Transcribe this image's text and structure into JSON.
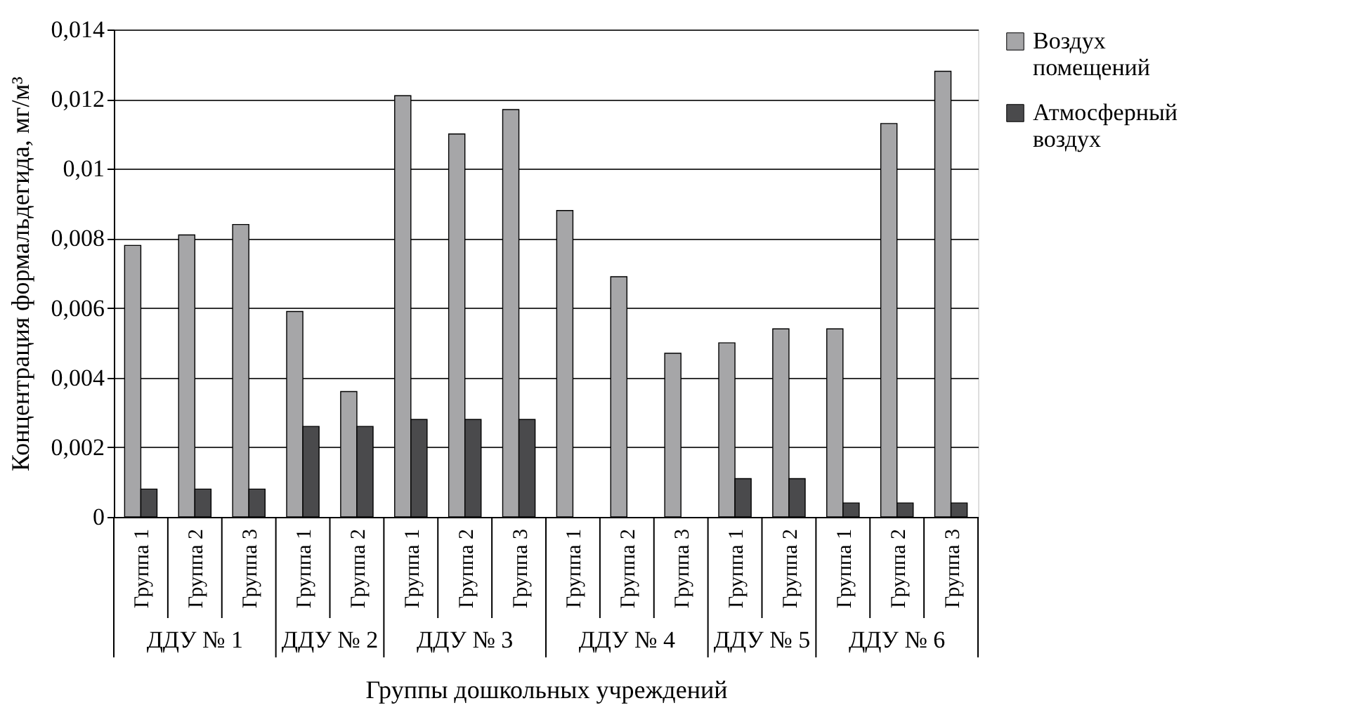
{
  "chart_data": {
    "type": "bar",
    "xlabel": "Группы дошкольных учреждений",
    "ylabel": "Концентрация формальдегида, мг/м³",
    "categories": [
      "Группа 1",
      "Группа 2",
      "Группа 3",
      "Группа 1",
      "Группа 2",
      "Группа 1",
      "Группа 2",
      "Группа 3",
      "Группа 1",
      "Группа 2",
      "Группа 3",
      "Группа 1",
      "Группа 2",
      "Группа 1",
      "Группа 2",
      "Группа 3"
    ],
    "annotations": [
      "ДДУ № 1",
      "ДДУ № 2",
      "ДДУ № 3",
      "ДДУ № 4",
      "ДДУ № 5",
      "ДДУ № 6"
    ],
    "series": [
      {
        "name": "Воздух помещений",
        "color": "#a6a6a8",
        "values": [
          0.0078,
          0.0081,
          0.0084,
          0.0059,
          0.0036,
          0.0121,
          0.011,
          0.0117,
          0.0088,
          0.0069,
          0.0047,
          0.005,
          0.0054,
          0.0054,
          0.0113,
          0.0128
        ]
      },
      {
        "name": "Атмосферный воздух",
        "color": "#4a4a4c",
        "values": [
          0.0008,
          0.0008,
          0.0008,
          0.0026,
          0.0026,
          0.0028,
          0.0028,
          0.0028,
          null,
          null,
          null,
          0.0011,
          0.0011,
          0.0004,
          0.0004,
          0.0004
        ]
      }
    ],
    "ylim": [
      0,
      0.014
    ],
    "yticks": [
      0,
      {
        "value": 0.002,
        "label": "0,002"
      },
      {
        "value": 0.004,
        "label": "0,004"
      },
      {
        "value": 0.006,
        "label": "0,006"
      },
      {
        "value": 0.008,
        "label": "0,008"
      },
      {
        "value": 0.01,
        "label": "0,01"
      },
      {
        "value": 0.012,
        "label": "0,012"
      },
      {
        "value": 0.014,
        "label": "0,014"
      }
    ],
    "grid": "y",
    "legend": "right"
  }
}
